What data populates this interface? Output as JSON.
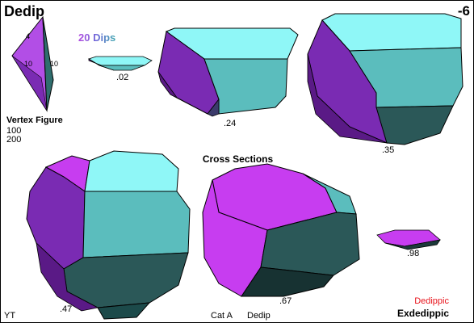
{
  "header": {
    "title": "Dedip",
    "number": "-6"
  },
  "legend": {
    "dips_label": "20 Dips"
  },
  "vertex_figure": {
    "label": "Vertex Figure",
    "lines": [
      "100",
      "200"
    ],
    "edge_labels": [
      "4",
      "10",
      "10"
    ]
  },
  "cross_sections": {
    "title": "Cross Sections",
    "labels": [
      ".02",
      ".24",
      ".35",
      ".47",
      ".67",
      ".98"
    ]
  },
  "footer": {
    "left": "YT",
    "category": "Cat A",
    "short_name": "Dedip",
    "names": [
      "Dedippic",
      "Exdedippic"
    ]
  },
  "colors": {
    "magenta": "#c73df0",
    "purple": "#6f1f9a",
    "dark_purple": "#4a1570",
    "cyan": "#8ff7f7",
    "teal": "#5bbdbd",
    "dark_teal": "#2b5858",
    "red": "#e8141c"
  }
}
